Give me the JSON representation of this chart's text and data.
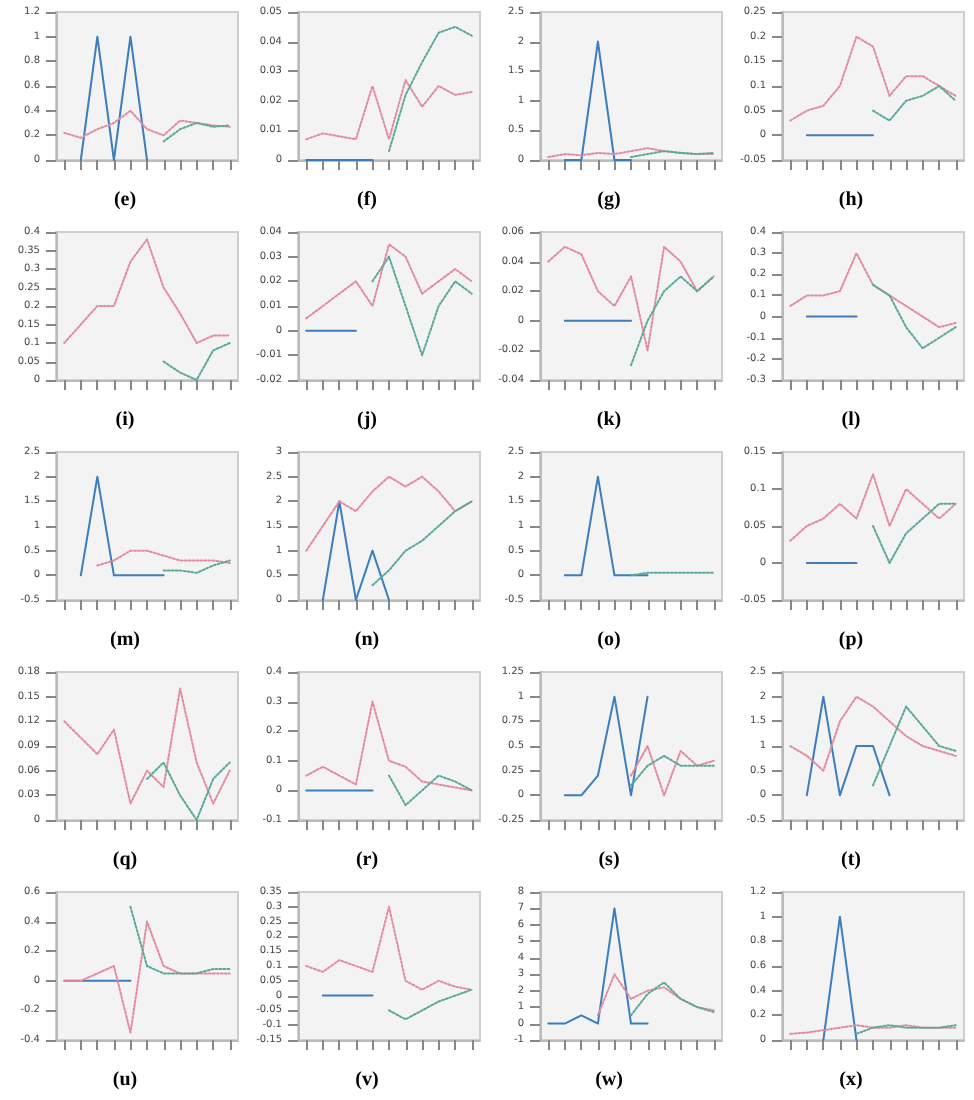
{
  "chart_data": [
    {
      "type": "line",
      "title": "(e)",
      "categories": [
        null,
        null,
        null,
        null,
        null,
        null,
        null,
        null,
        null,
        null,
        null
      ],
      "ylim": [
        0,
        1.2
      ],
      "yticks": [
        0,
        0.2,
        0.4,
        0.6,
        0.8,
        1,
        1.2
      ],
      "grid": false,
      "marker": "none",
      "series": [
        {
          "color": "#3b7dbd",
          "line_style": "solid",
          "values": [
            null,
            0,
            1,
            0,
            1,
            0,
            null,
            null,
            null,
            null,
            null
          ]
        },
        {
          "color": "#e38aa0",
          "line_style": "dotted",
          "values": [
            0.22,
            0.18,
            0.25,
            0.3,
            0.4,
            0.25,
            0.2,
            0.32,
            0.3,
            0.28,
            0.27
          ]
        },
        {
          "color": "#5aa89a",
          "line_style": "dotted",
          "values": [
            null,
            null,
            null,
            null,
            null,
            null,
            0.15,
            0.25,
            0.3,
            0.27,
            0.28
          ]
        }
      ]
    },
    {
      "type": "line",
      "title": "(f)",
      "categories": [
        null,
        null,
        null,
        null,
        null,
        null,
        null,
        null,
        null,
        null,
        null
      ],
      "ylim": [
        0,
        0.05
      ],
      "yticks": [
        0,
        0.01,
        0.02,
        0.03,
        0.04,
        0.05
      ],
      "grid": false,
      "marker": "none",
      "series": [
        {
          "color": "#3b7dbd",
          "line_style": "solid",
          "values": [
            0,
            0,
            0,
            0,
            0,
            null,
            null,
            null,
            null,
            null,
            null
          ]
        },
        {
          "color": "#e38aa0",
          "line_style": "dotted",
          "values": [
            0.007,
            0.009,
            0.008,
            0.007,
            0.025,
            0.007,
            0.027,
            0.018,
            0.025,
            0.022,
            0.023
          ]
        },
        {
          "color": "#5aa89a",
          "line_style": "dotted",
          "values": [
            null,
            null,
            null,
            null,
            null,
            0.003,
            0.022,
            0.033,
            0.043,
            0.045,
            0.042
          ]
        }
      ]
    },
    {
      "type": "line",
      "title": "(g)",
      "categories": [
        null,
        null,
        null,
        null,
        null,
        null,
        null,
        null,
        null,
        null,
        null
      ],
      "ylim": [
        0,
        2.5
      ],
      "yticks": [
        0,
        0.5,
        1,
        1.5,
        2,
        2.5
      ],
      "grid": false,
      "marker": "none",
      "series": [
        {
          "color": "#3b7dbd",
          "line_style": "solid",
          "values": [
            null,
            0,
            0,
            2,
            0,
            0,
            null,
            null,
            null,
            null,
            null
          ]
        },
        {
          "color": "#e38aa0",
          "line_style": "dotted",
          "values": [
            0.05,
            0.1,
            0.08,
            0.12,
            0.1,
            0.15,
            0.2,
            0.15,
            0.12,
            0.1,
            0.1
          ]
        },
        {
          "color": "#5aa89a",
          "line_style": "dotted",
          "values": [
            null,
            null,
            null,
            null,
            null,
            0.05,
            0.1,
            0.15,
            0.12,
            0.1,
            0.12
          ]
        }
      ]
    },
    {
      "type": "line",
      "title": "(h)",
      "categories": [
        null,
        null,
        null,
        null,
        null,
        null,
        null,
        null,
        null,
        null,
        null
      ],
      "ylim": [
        -0.05,
        0.25
      ],
      "yticks": [
        -0.05,
        0,
        0.05,
        0.1,
        0.15,
        0.2,
        0.25
      ],
      "grid": false,
      "marker": "none",
      "series": [
        {
          "color": "#3b7dbd",
          "line_style": "solid",
          "values": [
            null,
            0,
            0,
            0,
            0,
            0,
            null,
            null,
            null,
            null,
            null
          ]
        },
        {
          "color": "#e38aa0",
          "line_style": "dotted",
          "values": [
            0.03,
            0.05,
            0.06,
            0.1,
            0.2,
            0.18,
            0.08,
            0.12,
            0.12,
            0.1,
            0.08
          ]
        },
        {
          "color": "#5aa89a",
          "line_style": "dotted",
          "values": [
            null,
            null,
            null,
            null,
            null,
            0.05,
            0.03,
            0.07,
            0.08,
            0.1,
            0.07
          ]
        }
      ]
    },
    {
      "type": "line",
      "title": "(i)",
      "categories": [
        null,
        null,
        null,
        null,
        null,
        null,
        null,
        null,
        null,
        null,
        null
      ],
      "ylim": [
        0,
        0.4
      ],
      "yticks": [
        0,
        0.05,
        0.1,
        0.15,
        0.2,
        0.25,
        0.3,
        0.35,
        0.4
      ],
      "grid": false,
      "marker": "none",
      "series": [
        {
          "color": "#e38aa0",
          "line_style": "dotted",
          "values": [
            0.1,
            0.15,
            0.2,
            0.2,
            0.32,
            0.38,
            0.25,
            0.18,
            0.1,
            0.12,
            0.12
          ]
        },
        {
          "color": "#5aa89a",
          "line_style": "dotted",
          "values": [
            null,
            null,
            null,
            null,
            null,
            null,
            0.05,
            0.02,
            0,
            0.08,
            0.1
          ]
        }
      ]
    },
    {
      "type": "line",
      "title": "(j)",
      "categories": [
        null,
        null,
        null,
        null,
        null,
        null,
        null,
        null,
        null,
        null,
        null
      ],
      "ylim": [
        -0.02,
        0.04
      ],
      "yticks": [
        -0.02,
        -0.01,
        0,
        0.01,
        0.02,
        0.03,
        0.04
      ],
      "grid": false,
      "marker": "none",
      "series": [
        {
          "color": "#3b7dbd",
          "line_style": "solid",
          "values": [
            0,
            0,
            0,
            0,
            null,
            null,
            null,
            null,
            null,
            null,
            null
          ]
        },
        {
          "color": "#e38aa0",
          "line_style": "dotted",
          "values": [
            0.005,
            0.01,
            0.015,
            0.02,
            0.01,
            0.035,
            0.03,
            0.015,
            0.02,
            0.025,
            0.02
          ]
        },
        {
          "color": "#5aa89a",
          "line_style": "dotted",
          "values": [
            null,
            null,
            null,
            null,
            0.02,
            0.03,
            0.01,
            -0.01,
            0.01,
            0.02,
            0.015
          ]
        }
      ]
    },
    {
      "type": "line",
      "title": "(k)",
      "categories": [
        null,
        null,
        null,
        null,
        null,
        null,
        null,
        null,
        null,
        null,
        null
      ],
      "ylim": [
        -0.04,
        0.06
      ],
      "yticks": [
        -0.04,
        -0.02,
        0,
        0.02,
        0.04,
        0.06
      ],
      "grid": false,
      "marker": "none",
      "series": [
        {
          "color": "#3b7dbd",
          "line_style": "solid",
          "values": [
            null,
            0,
            0,
            0,
            0,
            0,
            null,
            null,
            null,
            null,
            null
          ]
        },
        {
          "color": "#e38aa0",
          "line_style": "dotted",
          "values": [
            0.04,
            0.05,
            0.045,
            0.02,
            0.01,
            0.03,
            -0.02,
            0.05,
            0.04,
            0.02,
            0.03
          ]
        },
        {
          "color": "#5aa89a",
          "line_style": "dotted",
          "values": [
            null,
            null,
            null,
            null,
            null,
            -0.03,
            0,
            0.02,
            0.03,
            0.02,
            0.03
          ]
        }
      ]
    },
    {
      "type": "line",
      "title": "(l)",
      "categories": [
        null,
        null,
        null,
        null,
        null,
        null,
        null,
        null,
        null,
        null,
        null
      ],
      "ylim": [
        -0.3,
        0.4
      ],
      "yticks": [
        -0.3,
        -0.2,
        -0.1,
        0,
        0.1,
        0.2,
        0.3,
        0.4
      ],
      "grid": false,
      "marker": "none",
      "series": [
        {
          "color": "#3b7dbd",
          "line_style": "solid",
          "values": [
            null,
            0,
            0,
            0,
            0,
            null,
            null,
            null,
            null,
            null,
            null
          ]
        },
        {
          "color": "#e38aa0",
          "line_style": "dotted",
          "values": [
            0.05,
            0.1,
            0.1,
            0.12,
            0.3,
            0.15,
            0.1,
            0.05,
            0,
            -0.05,
            -0.03
          ]
        },
        {
          "color": "#5aa89a",
          "line_style": "dotted",
          "values": [
            null,
            null,
            null,
            null,
            null,
            0.15,
            0.1,
            -0.05,
            -0.15,
            -0.1,
            -0.05
          ]
        }
      ]
    },
    {
      "type": "line",
      "title": "(m)",
      "categories": [
        null,
        null,
        null,
        null,
        null,
        null,
        null,
        null,
        null,
        null,
        null
      ],
      "ylim": [
        -0.5,
        2.5
      ],
      "yticks": [
        -0.5,
        0,
        0.5,
        1,
        1.5,
        2,
        2.5
      ],
      "grid": false,
      "marker": "none",
      "series": [
        {
          "color": "#3b7dbd",
          "line_style": "solid",
          "values": [
            null,
            0,
            2,
            0,
            0,
            0,
            0,
            null,
            null,
            null,
            null
          ]
        },
        {
          "color": "#e38aa0",
          "line_style": "dotted",
          "values": [
            null,
            null,
            0.2,
            0.3,
            0.5,
            0.5,
            0.4,
            0.3,
            0.3,
            0.3,
            0.25
          ]
        },
        {
          "color": "#5aa89a",
          "line_style": "dotted",
          "values": [
            null,
            null,
            null,
            null,
            null,
            null,
            0.1,
            0.1,
            0.05,
            0.2,
            0.3
          ]
        }
      ]
    },
    {
      "type": "line",
      "title": "(n)",
      "categories": [
        null,
        null,
        null,
        null,
        null,
        null,
        null,
        null,
        null,
        null,
        null
      ],
      "ylim": [
        0,
        3
      ],
      "yticks": [
        0,
        0.5,
        1,
        1.5,
        2,
        2.5,
        3
      ],
      "grid": false,
      "marker": "none",
      "series": [
        {
          "color": "#3b7dbd",
          "line_style": "solid",
          "values": [
            null,
            0,
            2,
            0,
            1,
            0,
            null,
            null,
            null,
            null,
            null
          ]
        },
        {
          "color": "#e38aa0",
          "line_style": "dotted",
          "values": [
            1,
            1.5,
            2,
            1.8,
            2.2,
            2.5,
            2.3,
            2.5,
            2.2,
            1.8,
            2
          ]
        },
        {
          "color": "#5aa89a",
          "line_style": "dotted",
          "values": [
            null,
            null,
            null,
            null,
            0.3,
            0.6,
            1,
            1.2,
            1.5,
            1.8,
            2
          ]
        }
      ]
    },
    {
      "type": "line",
      "title": "(o)",
      "categories": [
        null,
        null,
        null,
        null,
        null,
        null,
        null,
        null,
        null,
        null,
        null
      ],
      "ylim": [
        -0.5,
        2.5
      ],
      "yticks": [
        -0.5,
        0,
        0.5,
        1,
        1.5,
        2,
        2.5
      ],
      "grid": false,
      "marker": "none",
      "series": [
        {
          "color": "#3b7dbd",
          "line_style": "solid",
          "values": [
            null,
            0,
            0,
            2,
            0,
            0,
            0,
            null,
            null,
            null,
            null
          ]
        },
        {
          "color": "#5aa89a",
          "line_style": "dotted",
          "values": [
            null,
            null,
            null,
            null,
            null,
            0,
            0.05,
            0.05,
            0.05,
            0.05,
            0.05
          ]
        }
      ]
    },
    {
      "type": "line",
      "title": "(p)",
      "categories": [
        null,
        null,
        null,
        null,
        null,
        null,
        null,
        null,
        null,
        null,
        null
      ],
      "ylim": [
        -0.05,
        0.15
      ],
      "yticks": [
        -0.05,
        0,
        0.05,
        0.1,
        0.15
      ],
      "grid": false,
      "marker": "none",
      "series": [
        {
          "color": "#3b7dbd",
          "line_style": "solid",
          "values": [
            null,
            0,
            0,
            0,
            0,
            null,
            null,
            null,
            null,
            null,
            null
          ]
        },
        {
          "color": "#e38aa0",
          "line_style": "dotted",
          "values": [
            0.03,
            0.05,
            0.06,
            0.08,
            0.06,
            0.12,
            0.05,
            0.1,
            0.08,
            0.06,
            0.08
          ]
        },
        {
          "color": "#5aa89a",
          "line_style": "dotted",
          "values": [
            null,
            null,
            null,
            null,
            null,
            0.05,
            0,
            0.04,
            0.06,
            0.08,
            0.08
          ]
        }
      ]
    },
    {
      "type": "line",
      "title": "(q)",
      "categories": [
        null,
        null,
        null,
        null,
        null,
        null,
        null,
        null,
        null,
        null,
        null
      ],
      "ylim": [
        0,
        0.18
      ],
      "yticks": [
        0,
        0.03,
        0.06,
        0.09,
        0.12,
        0.15,
        0.18
      ],
      "grid": false,
      "marker": "none",
      "series": [
        {
          "color": "#e38aa0",
          "line_style": "dotted",
          "values": [
            0.12,
            0.1,
            0.08,
            0.11,
            0.02,
            0.06,
            0.04,
            0.16,
            0.07,
            0.02,
            0.06
          ]
        },
        {
          "color": "#5aa89a",
          "line_style": "dotted",
          "values": [
            null,
            null,
            null,
            null,
            null,
            0.05,
            0.07,
            0.03,
            0,
            0.05,
            0.07
          ]
        }
      ]
    },
    {
      "type": "line",
      "title": "(r)",
      "categories": [
        null,
        null,
        null,
        null,
        null,
        null,
        null,
        null,
        null,
        null,
        null
      ],
      "ylim": [
        -0.1,
        0.4
      ],
      "yticks": [
        -0.1,
        0,
        0.1,
        0.2,
        0.3,
        0.4
      ],
      "grid": false,
      "marker": "none",
      "series": [
        {
          "color": "#3b7dbd",
          "line_style": "solid",
          "values": [
            0,
            0,
            0,
            0,
            0,
            null,
            null,
            null,
            null,
            null,
            null
          ]
        },
        {
          "color": "#e38aa0",
          "line_style": "dotted",
          "values": [
            0.05,
            0.08,
            0.05,
            0.02,
            0.3,
            0.1,
            0.08,
            0.03,
            0.02,
            0.01,
            0
          ]
        },
        {
          "color": "#5aa89a",
          "line_style": "dotted",
          "values": [
            null,
            null,
            null,
            null,
            null,
            0.05,
            -0.05,
            0,
            0.05,
            0.03,
            0
          ]
        }
      ]
    },
    {
      "type": "line",
      "title": "(s)",
      "categories": [
        null,
        null,
        null,
        null,
        null,
        null,
        null,
        null,
        null,
        null,
        null
      ],
      "ylim": [
        -0.25,
        1.25
      ],
      "yticks": [
        -0.25,
        0,
        0.25,
        0.5,
        0.75,
        1,
        1.25
      ],
      "grid": false,
      "marker": "none",
      "series": [
        {
          "color": "#3b7dbd",
          "line_style": "solid",
          "values": [
            null,
            0,
            0,
            0.2,
            1,
            0,
            1,
            null,
            null,
            null,
            null
          ]
        },
        {
          "color": "#e38aa0",
          "line_style": "dotted",
          "values": [
            null,
            null,
            null,
            null,
            null,
            0.2,
            0.5,
            0,
            0.45,
            0.3,
            0.35
          ]
        },
        {
          "color": "#5aa89a",
          "line_style": "dotted",
          "values": [
            null,
            null,
            null,
            null,
            null,
            0.1,
            0.3,
            0.4,
            0.3,
            0.3,
            0.3
          ]
        }
      ]
    },
    {
      "type": "line",
      "title": "(t)",
      "categories": [
        null,
        null,
        null,
        null,
        null,
        null,
        null,
        null,
        null,
        null,
        null
      ],
      "ylim": [
        -0.5,
        2.5
      ],
      "yticks": [
        -0.5,
        0,
        0.5,
        1,
        1.5,
        2,
        2.5
      ],
      "grid": false,
      "marker": "none",
      "series": [
        {
          "color": "#3b7dbd",
          "line_style": "solid",
          "values": [
            null,
            0,
            2,
            0,
            1,
            1,
            0,
            null,
            null,
            null,
            null
          ]
        },
        {
          "color": "#e38aa0",
          "line_style": "dotted",
          "values": [
            1,
            0.8,
            0.5,
            1.5,
            2,
            1.8,
            1.5,
            1.2,
            1,
            0.9,
            0.8
          ]
        },
        {
          "color": "#5aa89a",
          "line_style": "dotted",
          "values": [
            null,
            null,
            null,
            null,
            null,
            0.2,
            1,
            1.8,
            1.4,
            1,
            0.9
          ]
        }
      ]
    },
    {
      "type": "line",
      "title": "(u)",
      "categories": [
        null,
        null,
        null,
        null,
        null,
        null,
        null,
        null,
        null,
        null,
        null
      ],
      "ylim": [
        -0.4,
        0.6
      ],
      "yticks": [
        -0.4,
        -0.2,
        0,
        0.2,
        0.4,
        0.6
      ],
      "grid": false,
      "marker": "none",
      "series": [
        {
          "color": "#3b7dbd",
          "line_style": "solid",
          "values": [
            0,
            0,
            0,
            0,
            0,
            null,
            null,
            null,
            null,
            null,
            null
          ]
        },
        {
          "color": "#e38aa0",
          "line_style": "dotted",
          "values": [
            0,
            0,
            0.05,
            0.1,
            -0.35,
            0.4,
            0.1,
            0.05,
            0.05,
            0.05,
            0.05
          ]
        },
        {
          "color": "#5aa89a",
          "line_style": "dotted",
          "values": [
            null,
            null,
            null,
            null,
            0.5,
            0.1,
            0.05,
            0.05,
            0.05,
            0.08,
            0.08
          ]
        }
      ]
    },
    {
      "type": "line",
      "title": "(v)",
      "categories": [
        null,
        null,
        null,
        null,
        null,
        null,
        null,
        null,
        null,
        null,
        null
      ],
      "ylim": [
        -0.15,
        0.35
      ],
      "yticks": [
        -0.15,
        -0.1,
        -0.05,
        0,
        0.05,
        0.1,
        0.15,
        0.2,
        0.25,
        0.3,
        0.35
      ],
      "grid": false,
      "marker": "none",
      "series": [
        {
          "color": "#3b7dbd",
          "line_style": "solid",
          "values": [
            null,
            0,
            0,
            0,
            0,
            null,
            null,
            null,
            null,
            null,
            null
          ]
        },
        {
          "color": "#e38aa0",
          "line_style": "dotted",
          "values": [
            0.1,
            0.08,
            0.12,
            0.1,
            0.08,
            0.3,
            0.05,
            0.02,
            0.05,
            0.03,
            0.02
          ]
        },
        {
          "color": "#5aa89a",
          "line_style": "dotted",
          "values": [
            null,
            null,
            null,
            null,
            null,
            -0.05,
            -0.08,
            -0.05,
            -0.02,
            0,
            0.02
          ]
        }
      ]
    },
    {
      "type": "line",
      "title": "(w)",
      "categories": [
        null,
        null,
        null,
        null,
        null,
        null,
        null,
        null,
        null,
        null,
        null
      ],
      "ylim": [
        -1,
        8
      ],
      "yticks": [
        -1,
        0,
        1,
        2,
        3,
        4,
        5,
        6,
        7,
        8
      ],
      "grid": false,
      "marker": "none",
      "series": [
        {
          "color": "#3b7dbd",
          "line_style": "solid",
          "values": [
            0,
            0,
            0.5,
            0,
            7,
            0,
            0,
            null,
            null,
            null,
            null
          ]
        },
        {
          "color": "#e38aa0",
          "line_style": "dotted",
          "values": [
            null,
            null,
            null,
            0.5,
            3,
            1.5,
            2,
            2.2,
            1.5,
            1,
            0.8
          ]
        },
        {
          "color": "#5aa89a",
          "line_style": "dotted",
          "values": [
            null,
            null,
            null,
            null,
            null,
            0.5,
            1.8,
            2.5,
            1.5,
            1,
            0.7
          ]
        }
      ]
    },
    {
      "type": "line",
      "title": "(x)",
      "categories": [
        null,
        null,
        null,
        null,
        null,
        null,
        null,
        null,
        null,
        null,
        null
      ],
      "ylim": [
        0,
        1.2
      ],
      "yticks": [
        0,
        0.2,
        0.4,
        0.6,
        0.8,
        1,
        1.2
      ],
      "grid": false,
      "marker": "none",
      "series": [
        {
          "color": "#3b7dbd",
          "line_style": "solid",
          "values": [
            null,
            null,
            0,
            1,
            0,
            null,
            null,
            null,
            null,
            null,
            null
          ]
        },
        {
          "color": "#e38aa0",
          "line_style": "dotted",
          "values": [
            0.05,
            0.06,
            0.08,
            0.1,
            0.12,
            0.1,
            0.1,
            0.12,
            0.1,
            0.1,
            0.1
          ]
        },
        {
          "color": "#5aa89a",
          "line_style": "dotted",
          "values": [
            null,
            null,
            null,
            null,
            0.05,
            0.1,
            0.12,
            0.1,
            0.1,
            0.1,
            0.12
          ]
        }
      ]
    }
  ]
}
